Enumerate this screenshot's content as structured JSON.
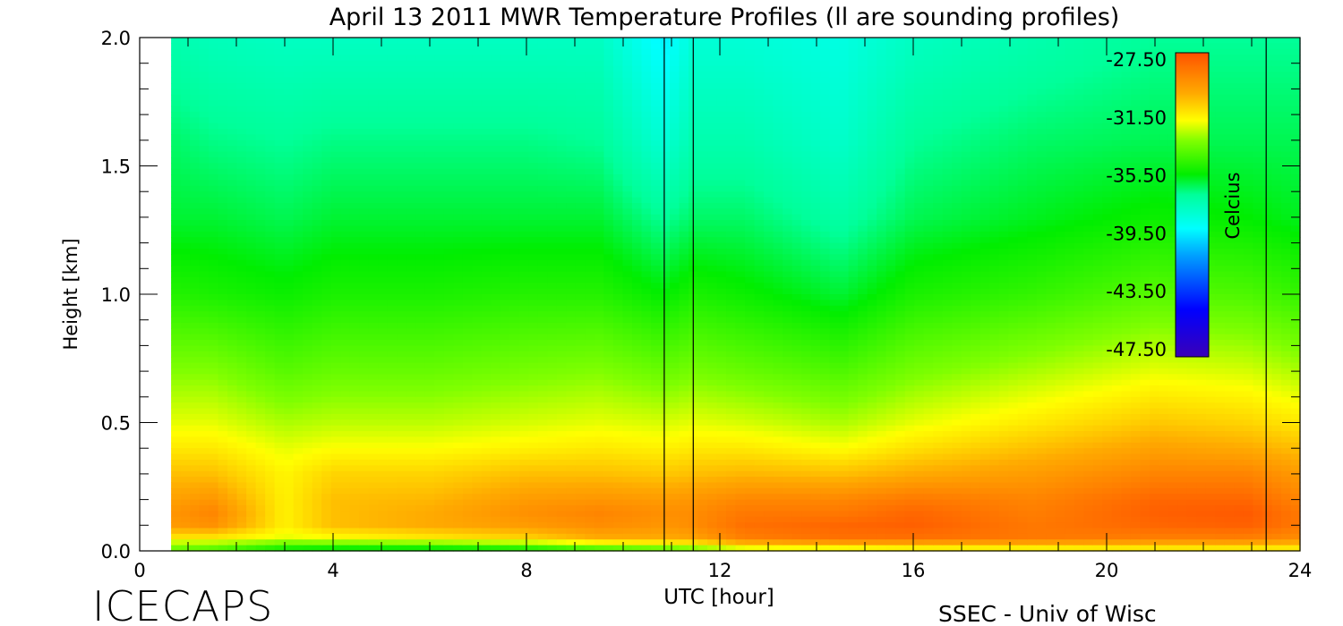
{
  "chart_data": {
    "type": "heatmap",
    "title": "April 13 2011 MWR Temperature Profiles (ll are sounding profiles)",
    "xlabel": "UTC [hour]",
    "ylabel": "Height [km]",
    "xlim": [
      0,
      24
    ],
    "ylim": [
      0.0,
      2.0
    ],
    "x_ticks": [
      "0",
      "4",
      "8",
      "12",
      "16",
      "20",
      "24"
    ],
    "y_ticks": [
      "0.0",
      "0.5",
      "1.0",
      "1.5",
      "2.0"
    ],
    "data_time_range": [
      0.65,
      24.0
    ],
    "sounding_times": [
      10.85,
      11.45,
      23.3
    ],
    "colorbar": {
      "label": "Celcius",
      "ticks": [
        "-27.50",
        "-31.50",
        "-35.50",
        "-39.50",
        "-43.50",
        "-47.50"
      ],
      "range": [
        -49.0,
        -26.5
      ],
      "colormap": [
        {
          "v": -49.0,
          "c": "#3a00b8"
        },
        {
          "v": -45.5,
          "c": "#0000ff"
        },
        {
          "v": -41.5,
          "c": "#00a0ff"
        },
        {
          "v": -39.5,
          "c": "#00ffff"
        },
        {
          "v": -37.0,
          "c": "#00ff9a"
        },
        {
          "v": -35.5,
          "c": "#00ee00"
        },
        {
          "v": -33.0,
          "c": "#80ff00"
        },
        {
          "v": -31.5,
          "c": "#ffff00"
        },
        {
          "v": -29.5,
          "c": "#ffaa00"
        },
        {
          "v": -27.5,
          "c": "#ff7000"
        },
        {
          "v": -26.5,
          "c": "#ff5000"
        }
      ]
    },
    "profiles": {
      "heights_km": [
        0.0,
        0.02,
        0.05,
        0.1,
        0.15,
        0.2,
        0.3,
        0.4,
        0.5,
        0.7,
        1.0,
        1.3,
        1.6,
        2.0
      ],
      "samples": [
        {
          "t": 0.65,
          "temps": [
            -33.5,
            -33.0,
            -31.0,
            -29.0,
            -28.8,
            -29.2,
            -30.0,
            -31.0,
            -31.8,
            -33.0,
            -34.8,
            -36.0,
            -36.5,
            -37.5
          ]
        },
        {
          "t": 1.5,
          "temps": [
            -34.0,
            -33.2,
            -31.0,
            -28.6,
            -28.2,
            -28.8,
            -30.0,
            -31.0,
            -31.8,
            -33.0,
            -35.0,
            -36.0,
            -36.8,
            -37.8
          ]
        },
        {
          "t": 3.0,
          "temps": [
            -36.0,
            -34.0,
            -31.8,
            -31.2,
            -31.2,
            -31.2,
            -31.3,
            -31.8,
            -32.5,
            -33.8,
            -35.3,
            -36.3,
            -37.0,
            -38.0
          ]
        },
        {
          "t": 4.0,
          "temps": [
            -36.5,
            -34.0,
            -31.5,
            -30.0,
            -30.0,
            -30.0,
            -30.5,
            -31.5,
            -32.3,
            -33.5,
            -35.0,
            -36.0,
            -36.8,
            -38.0
          ]
        },
        {
          "t": 6.0,
          "temps": [
            -36.5,
            -34.0,
            -31.0,
            -29.5,
            -29.5,
            -29.8,
            -30.5,
            -31.5,
            -32.3,
            -33.5,
            -35.0,
            -36.0,
            -36.8,
            -38.0
          ]
        },
        {
          "t": 8.0,
          "temps": [
            -36.0,
            -33.5,
            -30.5,
            -29.0,
            -28.6,
            -29.0,
            -30.0,
            -31.2,
            -32.0,
            -33.2,
            -34.8,
            -36.0,
            -36.8,
            -38.0
          ]
        },
        {
          "t": 9.5,
          "temps": [
            -35.0,
            -32.5,
            -29.5,
            -28.5,
            -28.2,
            -28.8,
            -30.0,
            -31.0,
            -31.8,
            -33.0,
            -34.8,
            -36.0,
            -37.0,
            -38.0
          ]
        },
        {
          "t": 10.85,
          "temps": [
            -34.5,
            -32.0,
            -29.5,
            -28.8,
            -28.6,
            -29.0,
            -30.2,
            -31.2,
            -32.0,
            -33.5,
            -35.5,
            -37.0,
            -38.5,
            -39.8
          ]
        },
        {
          "t": 11.45,
          "temps": [
            -34.0,
            -31.8,
            -29.2,
            -28.5,
            -28.5,
            -28.8,
            -30.0,
            -31.0,
            -31.8,
            -33.2,
            -35.0,
            -36.5,
            -37.5,
            -38.5
          ]
        },
        {
          "t": 12.5,
          "temps": [
            -33.0,
            -30.5,
            -28.0,
            -27.5,
            -27.8,
            -28.3,
            -29.8,
            -31.0,
            -32.0,
            -33.5,
            -35.3,
            -36.5,
            -37.5,
            -38.5
          ]
        },
        {
          "t": 14.5,
          "temps": [
            -33.0,
            -30.0,
            -27.5,
            -27.2,
            -27.8,
            -28.3,
            -30.0,
            -31.5,
            -32.5,
            -34.0,
            -36.0,
            -37.3,
            -38.2,
            -38.8
          ]
        },
        {
          "t": 16.0,
          "temps": [
            -32.5,
            -30.0,
            -27.5,
            -27.0,
            -27.2,
            -27.8,
            -29.5,
            -30.8,
            -31.8,
            -33.2,
            -35.0,
            -36.3,
            -37.0,
            -38.0
          ]
        },
        {
          "t": 18.5,
          "temps": [
            -32.5,
            -30.0,
            -27.8,
            -27.8,
            -28.0,
            -28.2,
            -29.0,
            -30.0,
            -31.0,
            -32.5,
            -34.5,
            -35.8,
            -36.5,
            -37.5
          ]
        },
        {
          "t": 21.0,
          "temps": [
            -32.0,
            -30.0,
            -28.0,
            -27.2,
            -27.0,
            -27.2,
            -28.2,
            -29.2,
            -30.2,
            -31.8,
            -33.8,
            -35.3,
            -36.3,
            -37.0
          ]
        },
        {
          "t": 22.9,
          "temps": [
            -32.0,
            -30.0,
            -28.0,
            -27.0,
            -26.8,
            -27.2,
            -28.2,
            -29.5,
            -30.5,
            -32.0,
            -34.0,
            -35.5,
            -36.3,
            -37.0
          ]
        },
        {
          "t": 24.0,
          "temps": [
            -32.0,
            -30.2,
            -28.5,
            -27.8,
            -27.8,
            -28.2,
            -29.0,
            -30.0,
            -31.0,
            -32.5,
            -34.5,
            -35.8,
            -36.3,
            -37.0
          ]
        }
      ]
    }
  },
  "footer": {
    "left_text": "ICECAPS",
    "right_text": "SSEC - Univ of Wisc"
  }
}
